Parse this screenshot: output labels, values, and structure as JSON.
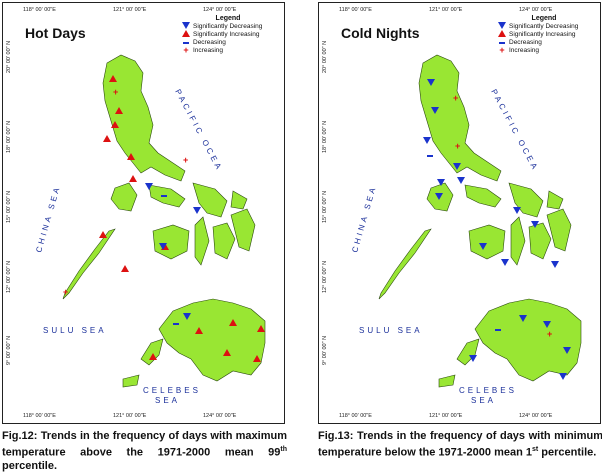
{
  "panels": [
    {
      "title": "Hot Days",
      "legend": {
        "title": "Legend",
        "items": [
          {
            "symbol": "triangle-down-icon",
            "label": "Significantly Decreasing",
            "color": "#1a33cc"
          },
          {
            "symbol": "triangle-up-icon",
            "label": "Significantly Increasing",
            "color": "#dd1111"
          },
          {
            "symbol": "dash-icon",
            "label": "Decreasing",
            "color": "#1a33cc"
          },
          {
            "symbol": "plus-icon",
            "label": "Increasing",
            "color": "#dd1111"
          }
        ]
      },
      "coords_top": [
        "118° 00' 00\"E",
        "121° 00' 00\"E",
        "124° 00' 00\"E"
      ],
      "coords_bottom": [
        "118° 00' 00\"E",
        "121° 00' 00\"E",
        "124° 00' 00\"E"
      ],
      "coords_side": [
        "20° 00' 00\" N",
        "18° 00' 00\" N",
        "15° 00' 00\" N",
        "12° 00' 00\" N",
        "9° 00' 00\" N"
      ],
      "seas": [
        "CHINA SEA",
        "PACIFIC OCEA",
        "SULU SEA",
        "CELEBES",
        "SEA"
      ],
      "caption_prefix": "Fig.12:",
      "caption": "Trends in the frequency of days with maximum temperature above the 1971-2000 mean 99",
      "caption_sup": "th",
      "caption_end": " percentile."
    },
    {
      "title": "Cold Nights",
      "legend": {
        "title": "Legend",
        "items": [
          {
            "symbol": "triangle-down-icon",
            "label": "Significantly Decreasing",
            "color": "#1a33cc"
          },
          {
            "symbol": "triangle-up-icon",
            "label": "Significantly Increasing",
            "color": "#dd1111"
          },
          {
            "symbol": "dash-icon",
            "label": "Decreasing",
            "color": "#1a33cc"
          },
          {
            "symbol": "plus-icon",
            "label": "Increasing",
            "color": "#dd1111"
          }
        ]
      },
      "coords_top": [
        "118° 00' 00\"E",
        "121° 00' 00\"E",
        "124° 00' 00\"E"
      ],
      "coords_bottom": [
        "118° 00' 00\"E",
        "121° 00' 00\"E",
        "124° 00' 00\"E"
      ],
      "coords_side": [
        "20° 00' 00\" N",
        "18° 00' 00\" N",
        "15° 00' 00\" N",
        "12° 00' 00\" N",
        "9° 00' 00\" N"
      ],
      "seas": [
        "CHINA SEA",
        "PACIFIC OCEA",
        "SULU SEA",
        "CELEBES",
        "SEA"
      ],
      "caption_prefix": "Fig.13:",
      "caption": "Trends in the frequency of days with minimum temperature below the 1971-2000 mean 1",
      "caption_sup": "st",
      "caption_end": " percentile."
    }
  ],
  "colors": {
    "land": "#99e633",
    "sig_decrease": "#1a33cc",
    "sig_increase": "#dd1111"
  }
}
